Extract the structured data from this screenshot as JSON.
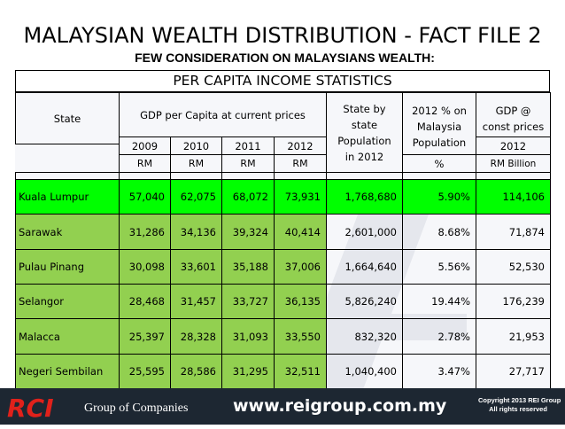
{
  "title": "MALAYSIAN WEALTH DISTRIBUTION - FACT FILE 2",
  "subtitle": "FEW CONSIDERATION ON MALAYSIANS WEALTH:",
  "section_title": "PER CAPITA INCOME STATISTICS",
  "header": {
    "state": "State",
    "gdp_per_capita": "GDP per Capita at current prices",
    "years": [
      "2009",
      "2010",
      "2011",
      "2012"
    ],
    "units": [
      "RM",
      "RM",
      "RM",
      "RM"
    ],
    "state_pop_lines": [
      "State by",
      "state",
      "Population",
      "in 2012"
    ],
    "pct_lines": [
      "2012 % on",
      "Malaysia",
      "Population"
    ],
    "pct_unit": "%",
    "gdp_const_lines": [
      "GDP @",
      "const prices"
    ],
    "gdp_const_year": "2012",
    "gdp_const_unit": "RM Billion"
  },
  "rows": [
    {
      "state": "Kuala Lumpur",
      "y2009": "57,040",
      "y2010": "62,075",
      "y2011": "68,072",
      "y2012": "73,931",
      "population": "1,768,680",
      "pct": "5.90%",
      "gdp": "114,106"
    },
    {
      "state": "Sarawak",
      "y2009": "31,286",
      "y2010": "34,136",
      "y2011": "39,324",
      "y2012": "40,414",
      "population": "2,601,000",
      "pct": "8.68%",
      "gdp": "71,874"
    },
    {
      "state": "Pulau Pinang",
      "y2009": "30,098",
      "y2010": "33,601",
      "y2011": "35,188",
      "y2012": "37,006",
      "population": "1,664,640",
      "pct": "5.56%",
      "gdp": "52,530"
    },
    {
      "state": "Selangor",
      "y2009": "28,468",
      "y2010": "31,457",
      "y2011": "33,727",
      "y2012": "36,135",
      "population": "5,826,240",
      "pct": "19.44%",
      "gdp": "176,239"
    },
    {
      "state": "Malacca",
      "y2009": "25,397",
      "y2010": "28,328",
      "y2011": "31,093",
      "y2012": "33,550",
      "population": "832,320",
      "pct": "2.78%",
      "gdp": "21,953"
    },
    {
      "state": "Negeri Sembilan",
      "y2009": "25,595",
      "y2010": "28,586",
      "y2011": "31,295",
      "y2012": "32,511",
      "population": "1,040,400",
      "pct": "3.47%",
      "gdp": "27,717"
    }
  ],
  "footer": {
    "logo_text": "RCI",
    "group_text": "Group of Companies",
    "url": "www.reigroup.com.my",
    "copyright_line1": "Copyright 2013 REI Group",
    "copyright_line2": "All rights reserved"
  },
  "colors": {
    "highlight_row": "#00ff00",
    "row_fill": "#92d050",
    "footer_bg": "#1d2732",
    "logo_red": "#e0211b"
  }
}
